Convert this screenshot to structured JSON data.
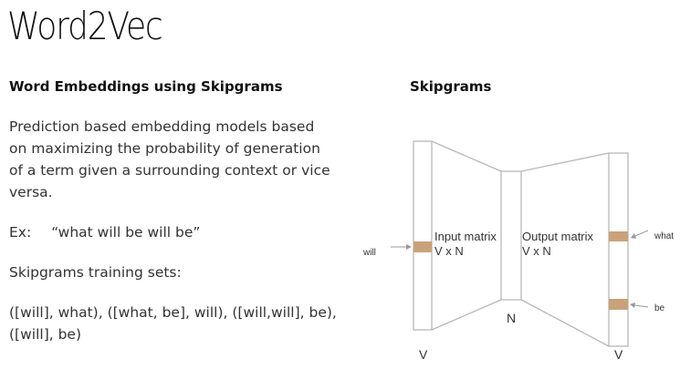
{
  "slide": {
    "title": "Word2Vec"
  },
  "left": {
    "heading": "Word Embeddings using Skipgrams",
    "paragraph_lines": [
      "Prediction based embedding models based",
      "on maximizing the probability of generation",
      "of a term given a surrounding context or vice",
      "versa."
    ],
    "example_label": "Ex:",
    "example_text": "“what will be will be”",
    "sets_label": "Skipgrams training sets:",
    "sets_lines": [
      "([will], what), ([what, be], will), ([will,will], be),",
      "([will], be)"
    ]
  },
  "right": {
    "heading": "Skipgrams",
    "diagram": {
      "input_word": "will",
      "input_matrix_label": "Input matrix",
      "input_matrix_dims": "V x N",
      "output_matrix_label": "Output matrix",
      "output_matrix_dims": "V x N",
      "output_word_1": "what",
      "output_word_2": "be",
      "hidden_label": "N",
      "input_size_label": "V",
      "output_size_label": "V",
      "highlight_color": "#c9a27a",
      "line_color": "#b8b8b8"
    }
  }
}
